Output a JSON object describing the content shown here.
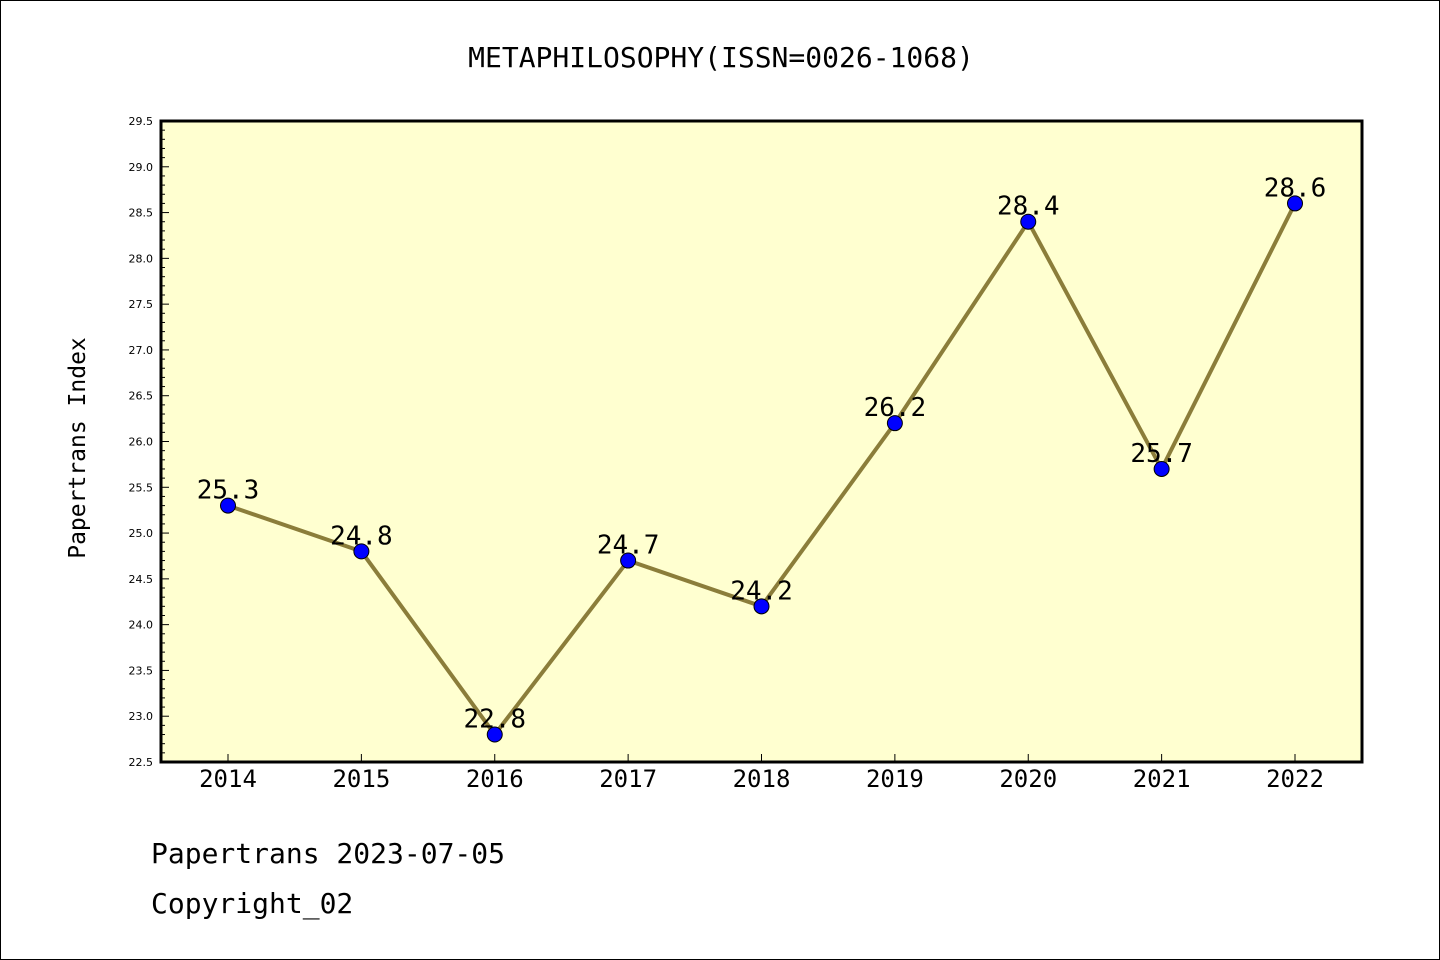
{
  "chart_data": {
    "type": "line",
    "title": "METAPHILOSOPHY(ISSN=0026-1068)",
    "xlabel": "",
    "ylabel": "Papertrans Index",
    "x": [
      "2014",
      "2015",
      "2016",
      "2017",
      "2018",
      "2019",
      "2020",
      "2021",
      "2022"
    ],
    "series": [
      {
        "values": [
          25.3,
          24.8,
          22.8,
          24.7,
          24.2,
          26.2,
          28.4,
          25.7,
          28.6
        ],
        "data_labels": [
          "25.3",
          "24.8",
          "22.8",
          "24.7",
          "24.2",
          "26.2",
          "28.4",
          "25.7",
          "28.6"
        ],
        "line_color": "#8b7d3a",
        "marker_color": "#0000ff"
      }
    ],
    "ylim": [
      22.5,
      29.5
    ],
    "yticks": [
      "22.5",
      "23.0",
      "23.5",
      "24.0",
      "24.5",
      "25.0",
      "25.5",
      "26.0",
      "26.5",
      "27.0",
      "27.5",
      "28.0",
      "28.5",
      "29.0",
      "29.5"
    ],
    "grid": false,
    "plot_background": "#ffffd0"
  },
  "footer": {
    "line1": "Papertrans 2023-07-05",
    "line2": "Copyright_02"
  }
}
